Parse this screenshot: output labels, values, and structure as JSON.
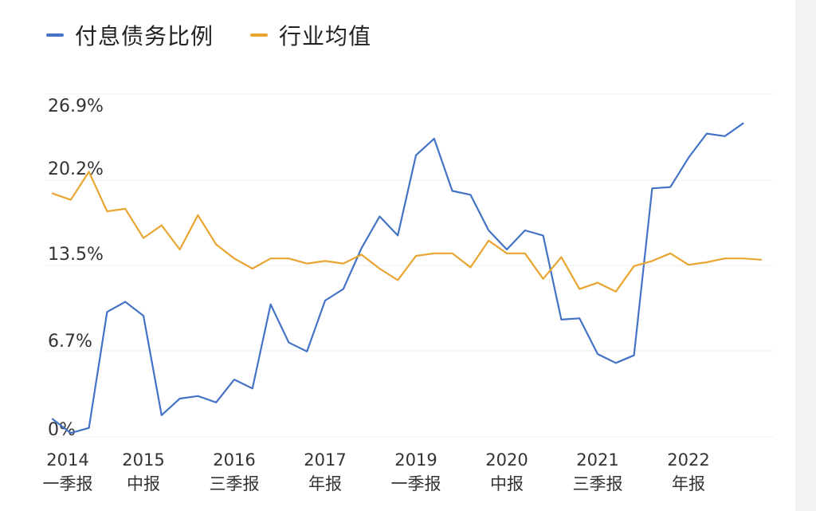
{
  "chart_data": {
    "type": "line",
    "title": "",
    "xlabel": "",
    "ylabel": "",
    "legend_position": "top-left",
    "grid": true,
    "ylim": [
      0,
      26.9
    ],
    "y_ticks": [
      "0%",
      "6.7%",
      "13.5%",
      "20.2%",
      "26.9%"
    ],
    "y_tick_values": [
      0,
      6.7,
      13.5,
      20.2,
      26.9
    ],
    "x_labels": [
      {
        "index": 0,
        "year": "2014",
        "period": "一季报"
      },
      {
        "index": 5,
        "year": "2015",
        "period": "中报"
      },
      {
        "index": 10,
        "year": "2016",
        "period": "三季报"
      },
      {
        "index": 15,
        "year": "2017",
        "period": "年报"
      },
      {
        "index": 20,
        "year": "2019",
        "period": "一季报"
      },
      {
        "index": 25,
        "year": "2020",
        "period": "中报"
      },
      {
        "index": 30,
        "year": "2021",
        "period": "三季报"
      },
      {
        "index": 35,
        "year": "2022",
        "period": "年报"
      }
    ],
    "series": [
      {
        "name": "付息债务比例",
        "color": "#4472C4",
        "values": [
          1.4,
          0.3,
          0.7,
          9.8,
          10.6,
          9.5,
          1.7,
          3.0,
          3.2,
          2.7,
          4.5,
          3.8,
          10.4,
          7.4,
          6.7,
          10.7,
          11.6,
          14.8,
          17.3,
          15.8,
          22.1,
          23.4,
          19.3,
          19.0,
          16.2,
          14.7,
          16.2,
          15.8,
          9.2,
          9.3,
          6.5,
          5.8,
          6.4,
          19.5,
          19.6,
          21.9,
          23.8,
          23.6,
          24.6
        ]
      },
      {
        "name": "行业均值",
        "color": "#E8A530",
        "values": [
          19.1,
          18.6,
          20.8,
          17.7,
          17.9,
          15.6,
          16.6,
          14.7,
          17.4,
          15.1,
          14.0,
          13.2,
          14.0,
          14.0,
          13.6,
          13.8,
          13.6,
          14.3,
          13.2,
          12.3,
          14.2,
          14.4,
          14.4,
          13.3,
          15.4,
          14.4,
          14.4,
          12.4,
          14.1,
          11.6,
          12.1,
          11.4,
          13.4,
          13.8,
          14.4,
          13.5,
          13.7,
          14.0,
          14.0,
          13.9
        ]
      }
    ]
  }
}
